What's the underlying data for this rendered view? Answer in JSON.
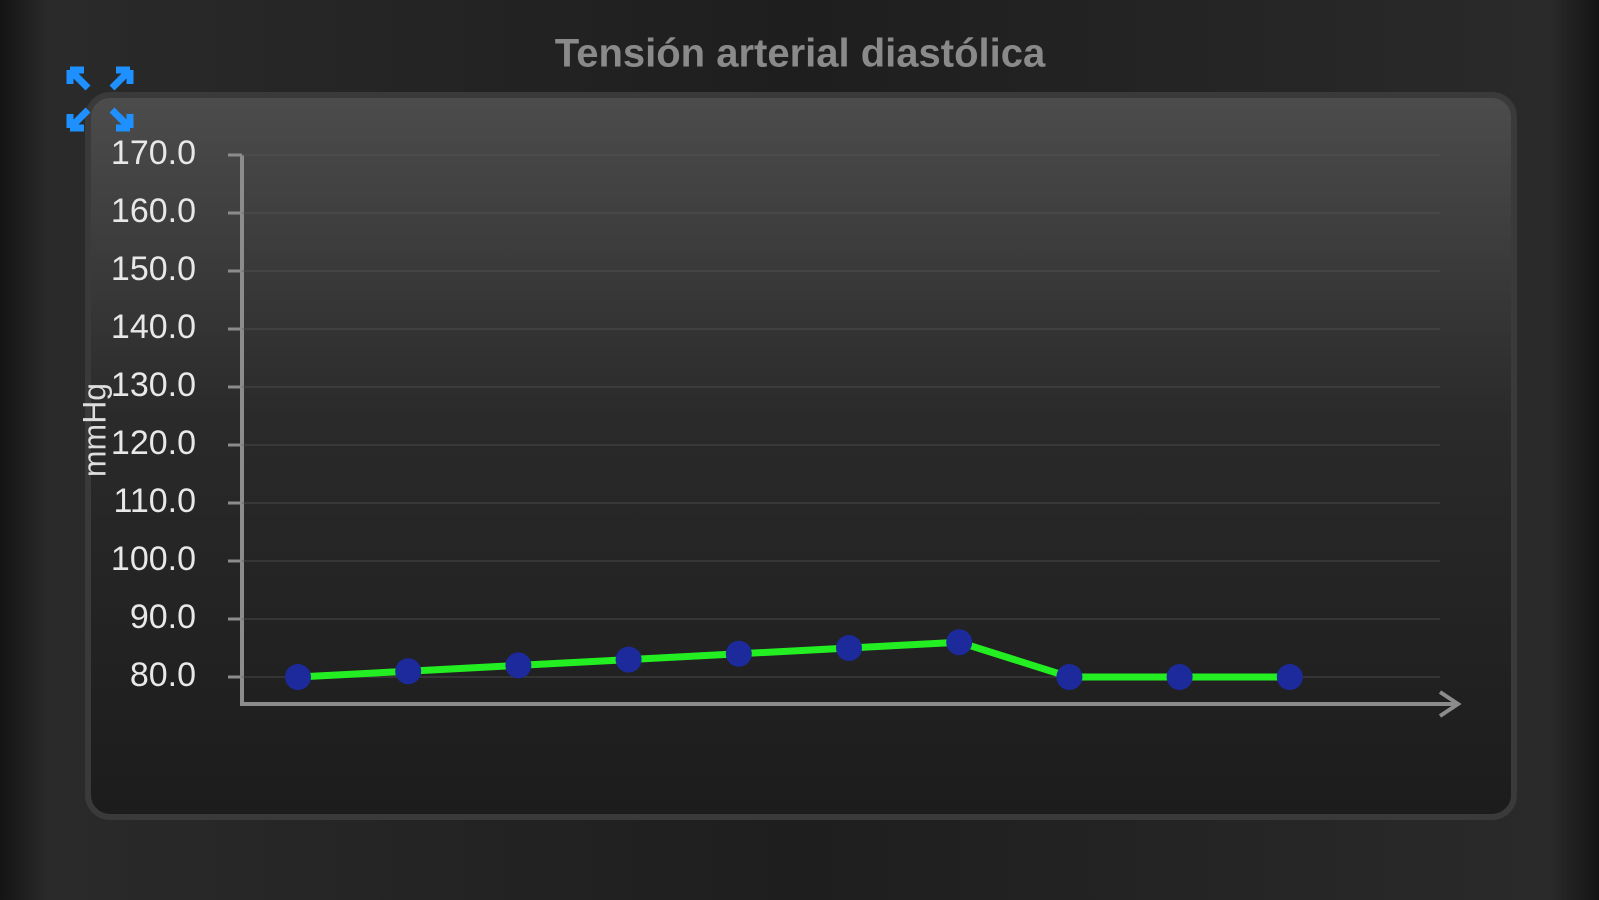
{
  "chart_data": {
    "type": "line",
    "title": "Tensión arterial diastólica",
    "y_label": "mmHg",
    "categories": [
      null,
      null,
      null,
      null,
      null,
      null,
      null,
      null,
      null,
      null
    ],
    "series": [
      {
        "color": "#22ee22",
        "marker_color": "#1c2a9c",
        "values": [
          80,
          81,
          82,
          83,
          84,
          85,
          86,
          80,
          80,
          80
        ]
      }
    ],
    "ylim": [
      75,
      170
    ],
    "yticks": [
      {
        "value": 80,
        "label": "80.0"
      },
      {
        "value": 90,
        "label": "90.0"
      },
      {
        "value": 100,
        "label": "100.0"
      },
      {
        "value": 110,
        "label": "110.0"
      },
      {
        "value": 120,
        "label": "120.0"
      },
      {
        "value": 130,
        "label": "130.0"
      },
      {
        "value": 140,
        "label": "140.0"
      },
      {
        "value": 150,
        "label": "150.0"
      },
      {
        "value": 160,
        "label": "160.0"
      },
      {
        "value": 170,
        "label": "170.0"
      }
    ],
    "grid": true
  }
}
